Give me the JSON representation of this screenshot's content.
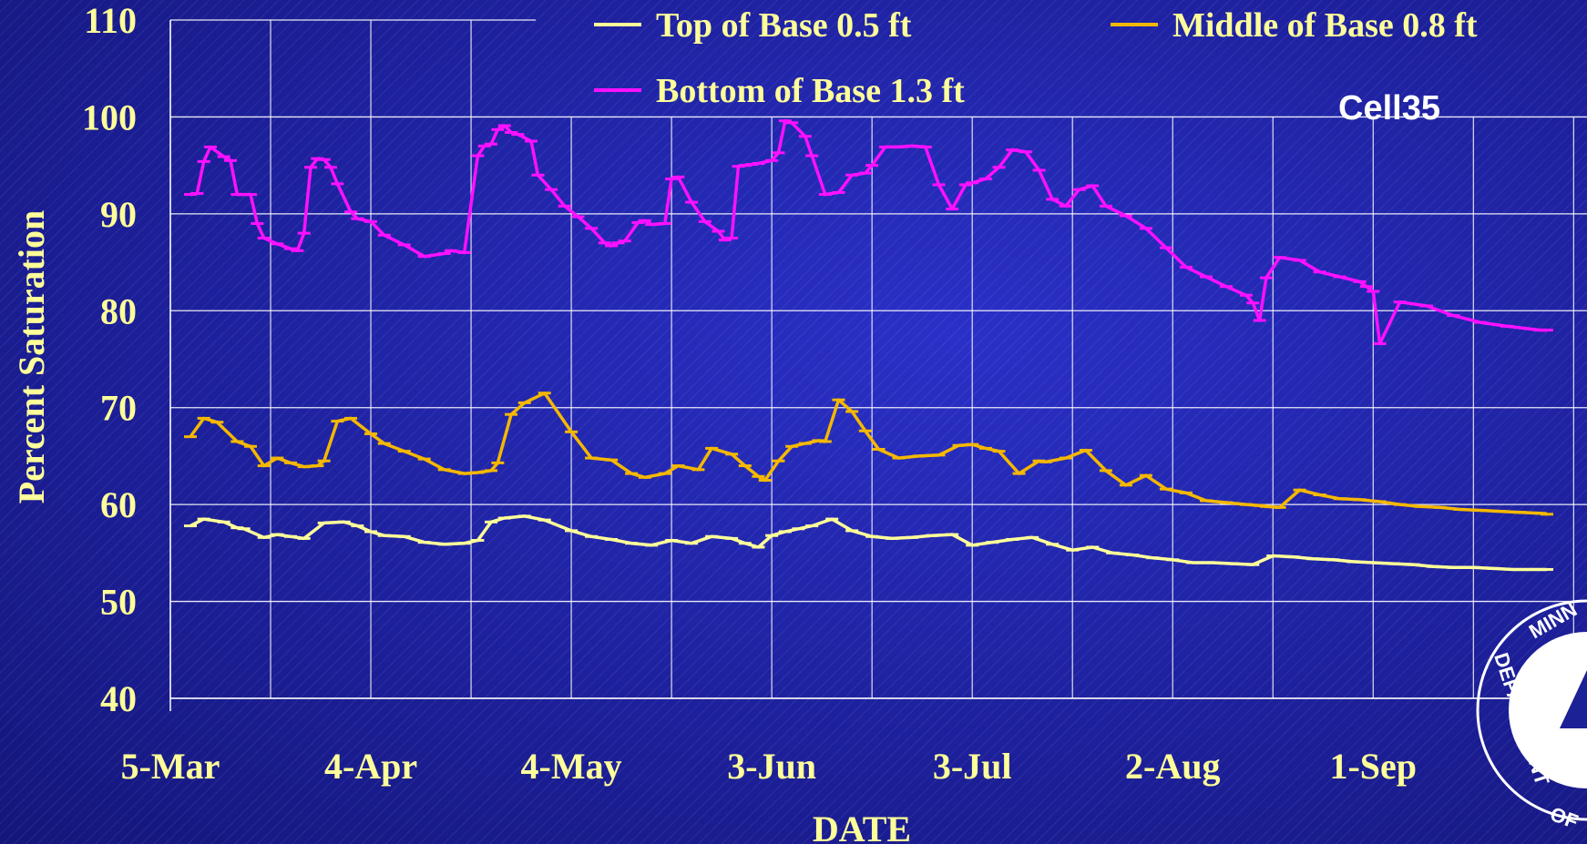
{
  "chart_data": {
    "type": "line",
    "title": "Cell35",
    "xlabel": "DATE",
    "ylabel": "Percent Saturation",
    "ylim": [
      40,
      110
    ],
    "yticks": [
      "40",
      "50",
      "60",
      "70",
      "80",
      "90",
      "100",
      "110"
    ],
    "xticks": [
      "5-Mar",
      "4-Apr",
      "4-May",
      "3-Jun",
      "3-Jul",
      "2-Aug",
      "1-Sep"
    ],
    "xtick_days": [
      0,
      30,
      60,
      90,
      120,
      150,
      180
    ],
    "xlim": [
      "5-Mar",
      "4-Oct"
    ],
    "grid": true,
    "legend_position": "top",
    "series": [
      {
        "name": "Top of Base 0.5 ft",
        "color": "#ffff99",
        "x": [
          3,
          5,
          8,
          10,
          11,
          14,
          16,
          18,
          20,
          23,
          26,
          28,
          30,
          32,
          35,
          38,
          41,
          44,
          46,
          48,
          50,
          53,
          56,
          60,
          63,
          66,
          69,
          72,
          75,
          78,
          81,
          84,
          86,
          88,
          90,
          92,
          94,
          96,
          99,
          102,
          105,
          108,
          111,
          114,
          117,
          120,
          123,
          126,
          129,
          132,
          135,
          138,
          141,
          144,
          147,
          150,
          153,
          156,
          159,
          162,
          165,
          168,
          171,
          174,
          177,
          180,
          183,
          186,
          189,
          192,
          195,
          198,
          201,
          204,
          206
        ],
        "values": [
          57.8,
          58.5,
          58.2,
          57.6,
          57.5,
          56.6,
          56.9,
          56.7,
          56.5,
          58.1,
          58.2,
          57.8,
          57.2,
          56.8,
          56.7,
          56.1,
          55.9,
          56.0,
          56.3,
          58.2,
          58.6,
          58.8,
          58.4,
          57.3,
          56.7,
          56.4,
          56.0,
          55.8,
          56.3,
          56.0,
          56.7,
          56.5,
          56.0,
          55.6,
          56.8,
          57.2,
          57.5,
          57.8,
          58.5,
          57.3,
          56.7,
          56.5,
          56.6,
          56.8,
          56.9,
          55.8,
          56.1,
          56.4,
          56.6,
          55.9,
          55.3,
          55.6,
          55.0,
          54.8,
          54.5,
          54.3,
          54.0,
          54.0,
          53.9,
          53.8,
          54.7,
          54.6,
          54.4,
          54.3,
          54.1,
          54.0,
          53.9,
          53.8,
          53.6,
          53.5,
          53.5,
          53.4,
          53.3,
          53.3,
          53.3
        ]
      },
      {
        "name": "Middle of Base 0.8 ft",
        "color": "#f5b800",
        "x": [
          3,
          5,
          7,
          10,
          12,
          14,
          16,
          18,
          20,
          22,
          23,
          25,
          27,
          30,
          32,
          35,
          38,
          41,
          44,
          46,
          48,
          49,
          51,
          53,
          56,
          60,
          63,
          66,
          69,
          71,
          74,
          76,
          79,
          81,
          84,
          86,
          88,
          89,
          91,
          93,
          95,
          97,
          98,
          100,
          102,
          104,
          106,
          109,
          112,
          115,
          118,
          120,
          122,
          124,
          127,
          130,
          131,
          134,
          137,
          140,
          143,
          146,
          149,
          152,
          155,
          158,
          161,
          163,
          164,
          166,
          169,
          172,
          175,
          178,
          181,
          184,
          187,
          190,
          193,
          196,
          199,
          202,
          205,
          206
        ],
        "values": [
          67.0,
          68.9,
          68.5,
          66.5,
          66.0,
          64.0,
          64.8,
          64.3,
          63.9,
          64.0,
          64.5,
          68.6,
          68.9,
          67.3,
          66.3,
          65.5,
          64.7,
          63.6,
          63.2,
          63.3,
          63.5,
          64.3,
          69.3,
          70.5,
          71.5,
          67.5,
          64.8,
          64.6,
          63.2,
          62.8,
          63.2,
          64.0,
          63.6,
          65.8,
          65.2,
          64.0,
          62.9,
          62.5,
          64.5,
          66.0,
          66.3,
          66.6,
          66.5,
          70.8,
          69.6,
          67.6,
          65.7,
          64.8,
          65.0,
          65.1,
          66.1,
          66.2,
          65.8,
          65.5,
          63.2,
          64.5,
          64.4,
          64.8,
          65.6,
          63.5,
          62.0,
          63.0,
          61.6,
          61.2,
          60.4,
          60.2,
          60.0,
          59.9,
          59.8,
          59.7,
          61.5,
          61.0,
          60.6,
          60.5,
          60.3,
          60.0,
          59.8,
          59.7,
          59.5,
          59.4,
          59.3,
          59.2,
          59.1,
          59.0
        ]
      },
      {
        "name": "Bottom of Base 1.3 ft",
        "color": "#ff10ff",
        "x": [
          3,
          4,
          5,
          6,
          8,
          9,
          10,
          12,
          13,
          14,
          16,
          18,
          19,
          20,
          21,
          22,
          23,
          24,
          25,
          27,
          28,
          30,
          32,
          35,
          38,
          41,
          42,
          44,
          46,
          47,
          48,
          49,
          50,
          51,
          52,
          54,
          55,
          57,
          59,
          61,
          63,
          65,
          66,
          67,
          68,
          70,
          71,
          72,
          74,
          75,
          76,
          78,
          80,
          82,
          83,
          84,
          85,
          86,
          87,
          88,
          90,
          91,
          92,
          93,
          95,
          96,
          98,
          100,
          102,
          104,
          105,
          107,
          109,
          111,
          113,
          115,
          117,
          119,
          120,
          122,
          124,
          126,
          128,
          130,
          132,
          134,
          136,
          138,
          140,
          143,
          146,
          149,
          152,
          155,
          158,
          161,
          162,
          163,
          164,
          166,
          169,
          172,
          175,
          178,
          179,
          180,
          181,
          184,
          188,
          192,
          196,
          200,
          205,
          206
        ],
        "values": [
          92.0,
          92.1,
          95.4,
          96.9,
          95.9,
          95.5,
          92.0,
          92.0,
          89.0,
          87.5,
          86.9,
          86.4,
          86.2,
          88.0,
          94.8,
          95.7,
          95.6,
          94.8,
          93.1,
          90.2,
          89.5,
          89.2,
          87.8,
          86.8,
          85.6,
          85.9,
          86.2,
          86.0,
          96.0,
          97.0,
          97.2,
          98.7,
          99.1,
          98.4,
          98.2,
          97.5,
          94.0,
          92.5,
          90.8,
          89.7,
          88.5,
          87.0,
          86.7,
          87.0,
          87.2,
          89.1,
          89.3,
          88.9,
          89.0,
          93.6,
          93.8,
          91.2,
          89.2,
          88.2,
          87.3,
          87.5,
          94.9,
          95.0,
          95.1,
          95.2,
          95.5,
          96.3,
          99.6,
          99.4,
          98.0,
          96.0,
          92.0,
          92.2,
          94.0,
          94.2,
          95.0,
          96.9,
          96.9,
          97.0,
          96.9,
          93.0,
          90.5,
          93.0,
          93.2,
          93.6,
          94.8,
          96.6,
          96.4,
          94.5,
          91.5,
          90.8,
          92.5,
          92.9,
          90.8,
          89.8,
          88.5,
          86.5,
          84.5,
          83.5,
          82.5,
          81.6,
          80.8,
          79.0,
          83.4,
          85.5,
          85.2,
          84.0,
          83.5,
          83.0,
          82.5,
          82.0,
          76.6,
          80.9,
          80.5,
          79.5,
          78.8,
          78.4,
          78.0,
          78.0
        ]
      }
    ]
  },
  "logo": {
    "text_top": "MINN",
    "text_left": "DEPARTMENT",
    "text_bottom": "OF"
  }
}
